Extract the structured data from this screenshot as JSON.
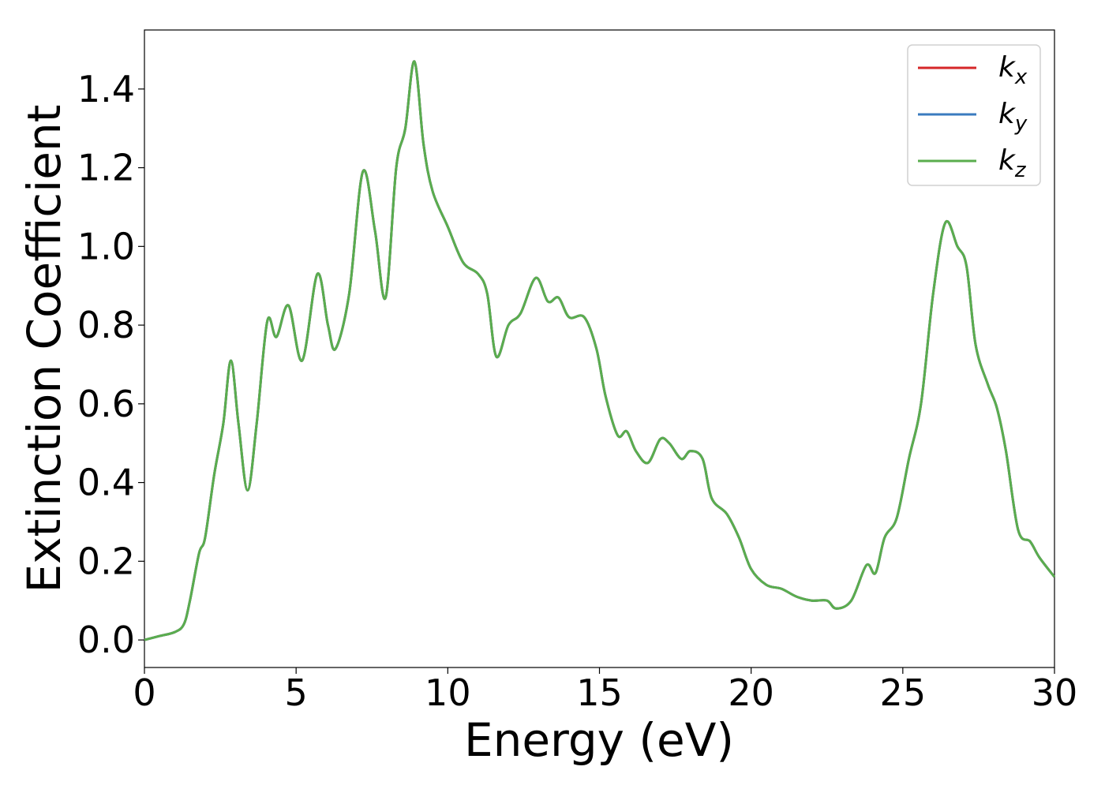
{
  "chart_data": {
    "type": "line",
    "xlabel": "Energy (eV)",
    "ylabel": "Extinction Coefficient",
    "xlim": [
      0,
      30
    ],
    "ylim": [
      -0.07,
      1.55
    ],
    "xticks": [
      0,
      5,
      10,
      15,
      20,
      25,
      30
    ],
    "xtick_labels": [
      "0",
      "5",
      "10",
      "15",
      "20",
      "25",
      "30"
    ],
    "yticks": [
      0.0,
      0.2,
      0.4,
      0.6,
      0.8,
      1.0,
      1.2,
      1.4
    ],
    "ytick_labels": [
      "0.0",
      "0.2",
      "0.4",
      "0.6",
      "0.8",
      "1.0",
      "1.2",
      "1.4"
    ],
    "grid": false,
    "legend_position": "top-right",
    "x": [
      0,
      0.5,
      1.0,
      1.3,
      1.5,
      1.8,
      2.0,
      2.3,
      2.6,
      2.85,
      3.1,
      3.4,
      3.7,
      4.05,
      4.35,
      4.75,
      5.2,
      5.7,
      6.05,
      6.3,
      6.75,
      7.2,
      7.6,
      7.95,
      8.3,
      8.6,
      8.9,
      9.2,
      9.5,
      10.0,
      10.5,
      11.0,
      11.3,
      11.6,
      12.0,
      12.4,
      12.9,
      13.3,
      13.65,
      14.0,
      14.5,
      14.9,
      15.2,
      15.6,
      15.9,
      16.2,
      16.6,
      17.0,
      17.3,
      17.7,
      18.0,
      18.4,
      18.7,
      19.2,
      19.6,
      20.0,
      20.5,
      21.0,
      21.5,
      22.0,
      22.5,
      22.8,
      23.3,
      23.8,
      24.1,
      24.4,
      24.8,
      25.2,
      25.6,
      26.0,
      26.4,
      26.8,
      27.1,
      27.4,
      27.8,
      28.1,
      28.4,
      28.8,
      29.2,
      29.5,
      30.0
    ],
    "series": [
      {
        "name": "k_x",
        "color": "#d62728",
        "y": [
          0.0,
          0.01,
          0.02,
          0.04,
          0.1,
          0.22,
          0.26,
          0.42,
          0.55,
          0.71,
          0.55,
          0.38,
          0.55,
          0.81,
          0.77,
          0.85,
          0.71,
          0.93,
          0.8,
          0.74,
          0.88,
          1.19,
          1.04,
          0.87,
          1.2,
          1.3,
          1.47,
          1.26,
          1.14,
          1.05,
          0.96,
          0.93,
          0.88,
          0.72,
          0.8,
          0.83,
          0.92,
          0.86,
          0.87,
          0.82,
          0.82,
          0.74,
          0.62,
          0.52,
          0.53,
          0.48,
          0.45,
          0.51,
          0.5,
          0.46,
          0.48,
          0.46,
          0.36,
          0.32,
          0.26,
          0.18,
          0.14,
          0.13,
          0.11,
          0.1,
          0.1,
          0.08,
          0.1,
          0.19,
          0.17,
          0.26,
          0.31,
          0.46,
          0.6,
          0.88,
          1.06,
          1.0,
          0.95,
          0.75,
          0.65,
          0.59,
          0.48,
          0.28,
          0.25,
          0.21,
          0.16
        ]
      },
      {
        "name": "k_y",
        "color": "#3a7bbf",
        "y": [
          0.0,
          0.01,
          0.02,
          0.04,
          0.1,
          0.22,
          0.26,
          0.42,
          0.55,
          0.71,
          0.55,
          0.38,
          0.55,
          0.81,
          0.77,
          0.85,
          0.71,
          0.93,
          0.8,
          0.74,
          0.88,
          1.19,
          1.04,
          0.87,
          1.2,
          1.3,
          1.47,
          1.26,
          1.14,
          1.05,
          0.96,
          0.93,
          0.88,
          0.72,
          0.8,
          0.83,
          0.92,
          0.86,
          0.87,
          0.82,
          0.82,
          0.74,
          0.62,
          0.52,
          0.53,
          0.48,
          0.45,
          0.51,
          0.5,
          0.46,
          0.48,
          0.46,
          0.36,
          0.32,
          0.26,
          0.18,
          0.14,
          0.13,
          0.11,
          0.1,
          0.1,
          0.08,
          0.1,
          0.19,
          0.17,
          0.26,
          0.31,
          0.46,
          0.6,
          0.88,
          1.06,
          1.0,
          0.95,
          0.75,
          0.65,
          0.59,
          0.48,
          0.28,
          0.25,
          0.21,
          0.16
        ]
      },
      {
        "name": "k_z",
        "color": "#5aad4e",
        "y": [
          0.0,
          0.01,
          0.02,
          0.04,
          0.1,
          0.22,
          0.26,
          0.42,
          0.55,
          0.71,
          0.55,
          0.38,
          0.55,
          0.81,
          0.77,
          0.85,
          0.71,
          0.93,
          0.8,
          0.74,
          0.88,
          1.19,
          1.04,
          0.87,
          1.2,
          1.3,
          1.47,
          1.26,
          1.14,
          1.05,
          0.96,
          0.93,
          0.88,
          0.72,
          0.8,
          0.83,
          0.92,
          0.86,
          0.87,
          0.82,
          0.82,
          0.74,
          0.62,
          0.52,
          0.53,
          0.48,
          0.45,
          0.51,
          0.5,
          0.46,
          0.48,
          0.46,
          0.36,
          0.32,
          0.26,
          0.18,
          0.14,
          0.13,
          0.11,
          0.1,
          0.1,
          0.08,
          0.1,
          0.19,
          0.17,
          0.26,
          0.31,
          0.46,
          0.6,
          0.88,
          1.06,
          1.0,
          0.95,
          0.75,
          0.65,
          0.59,
          0.48,
          0.28,
          0.25,
          0.21,
          0.16
        ]
      }
    ],
    "legend": [
      {
        "base": "k",
        "sub": "x",
        "series": 0
      },
      {
        "base": "k",
        "sub": "y",
        "series": 1
      },
      {
        "base": "k",
        "sub": "z",
        "series": 2
      }
    ]
  }
}
